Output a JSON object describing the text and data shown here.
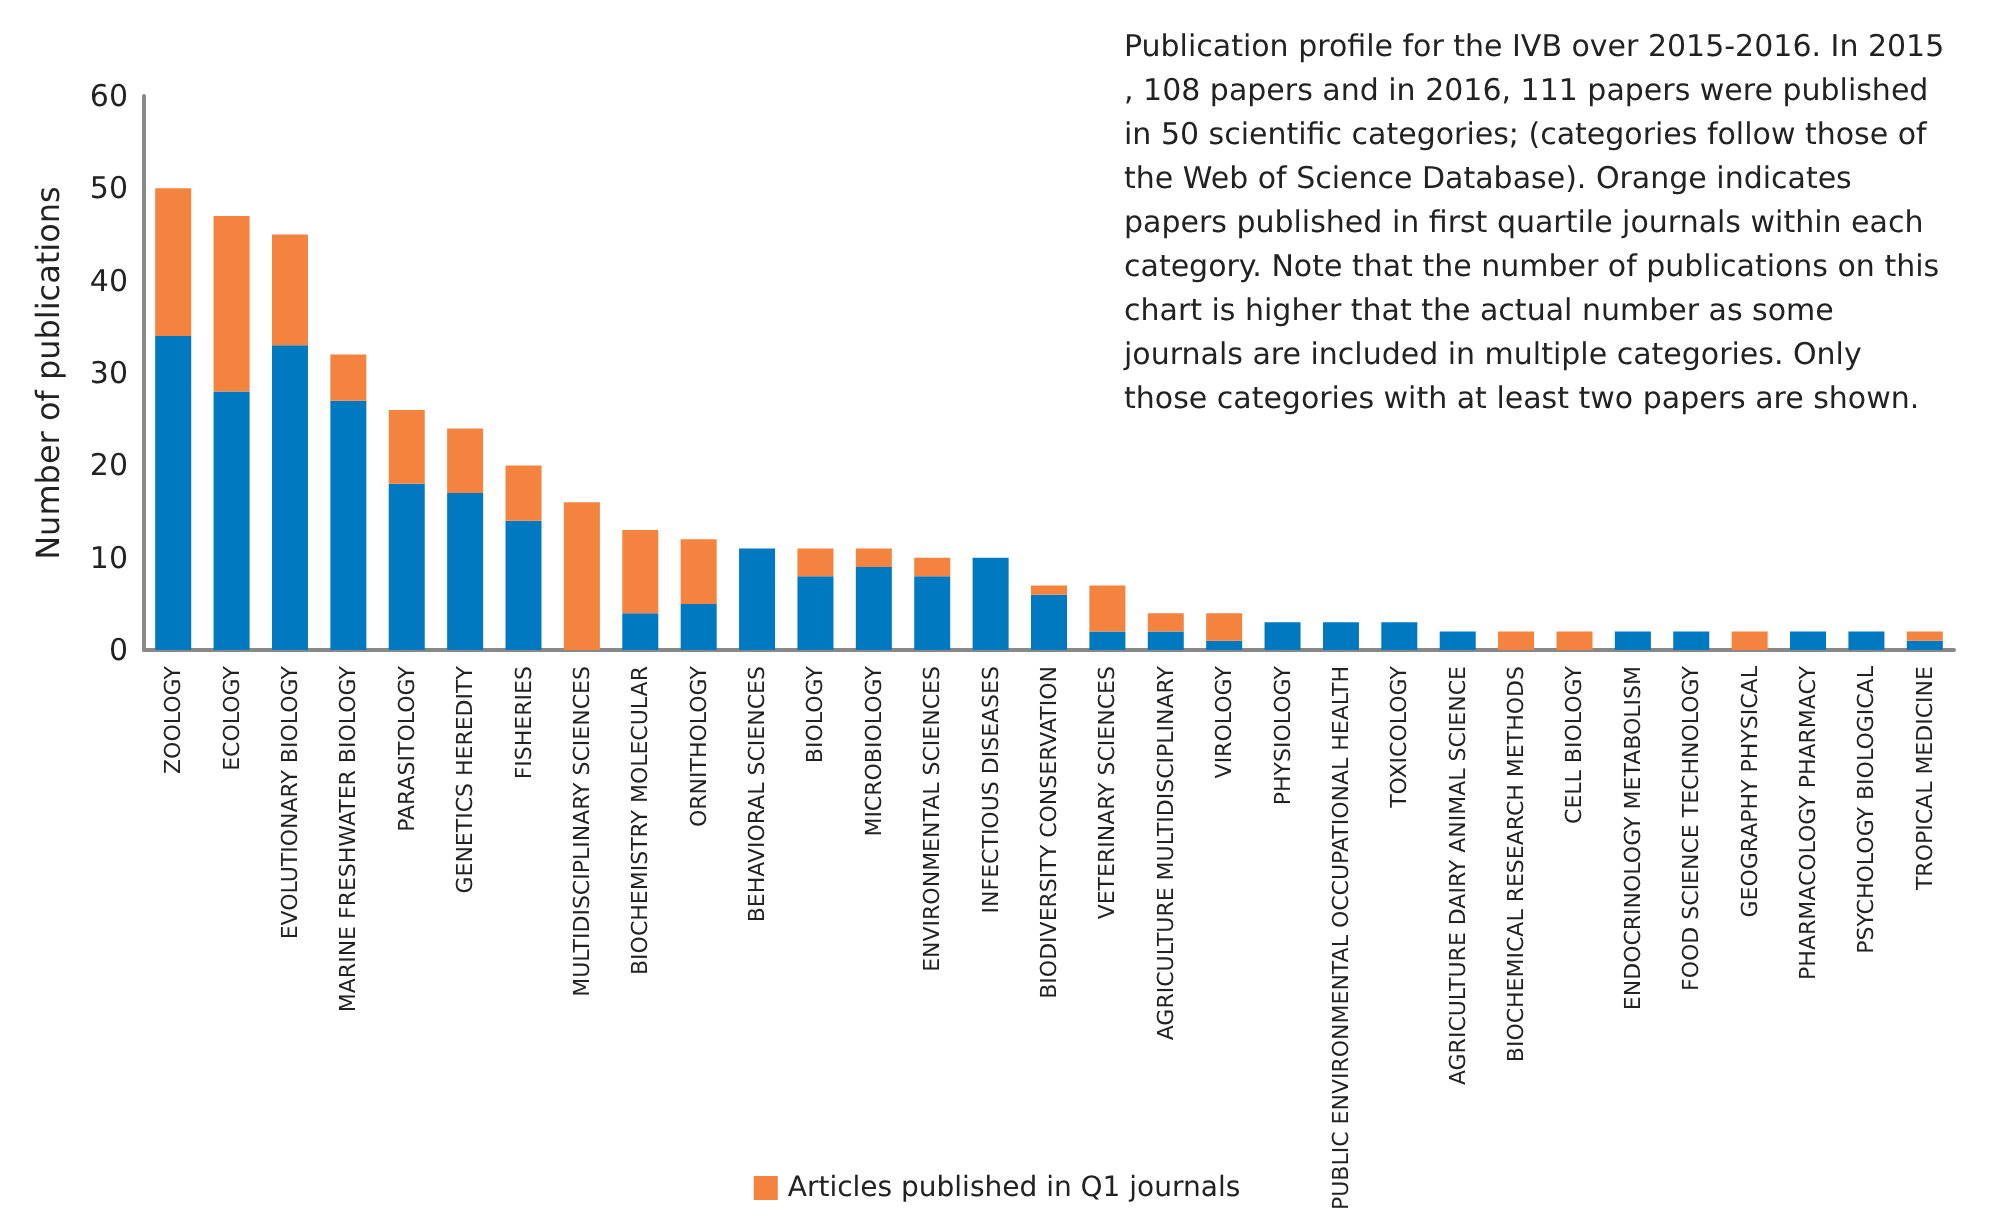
{
  "chart_data": {
    "type": "bar",
    "stacked": true,
    "ylabel": "Number of publications",
    "annotations": [
      "Publication profile for the IVB over 2015-2016. In 2015, 108 papers and in 2016, 111 papers were published in 50 scientific categories; (categories follow those of the Web of Science Database). Orange indicates papers published in first quartile journals within each category. Note that the number of publications on this chart is higher that the actual number as some journals are included in multiple categories. Only those categories with at least two papers are shown."
    ],
    "categories": [
      "ZOOLOGY",
      "ECOLOGY",
      "EVOLUTIONARY BIOLOGY",
      "MARINE FRESHWATER BIOLOGY",
      "PARASITOLOGY",
      "GENETICS HEREDITY",
      "FISHERIES",
      "MULTIDISCIPLINARY SCIENCES",
      "BIOCHEMISTRY MOLECULAR",
      "ORNITHOLOGY",
      "BEHAVIORAL SCIENCES",
      "BIOLOGY",
      "MICROBIOLOGY",
      "ENVIRONMENTAL SCIENCES",
      "INFECTIOUS DISEASES",
      "BIODIVERSITY CONSERVATION",
      "VETERINARY SCIENCES",
      "AGRICULTURE MULTIDISCIPLINARY",
      "VIROLOGY",
      "PHYSIOLOGY",
      "PUBLIC ENVIRONMENTAL OCCUPATIONAL HEALTH",
      "TOXICOLOGY",
      "AGRICULTURE DAIRY ANIMAL SCIENCE",
      "BIOCHEMICAL RESEARCH METHODS",
      "CELL BIOLOGY",
      "ENDOCRINOLOGY METABOLISM",
      "FOOD SCIENCE TECHNOLOGY",
      "GEOGRAPHY PHYSICAL",
      "PHARMACOLOGY PHARMACY",
      "PSYCHOLOGY BIOLOGICAL",
      "TROPICAL MEDICINE"
    ],
    "series": [
      {
        "color": "#0079c1",
        "values": [
          34,
          28,
          33,
          27,
          18,
          17,
          14,
          0,
          4,
          5,
          11,
          8,
          9,
          8,
          10,
          6,
          2,
          2,
          1,
          3,
          3,
          3,
          2,
          0,
          0,
          2,
          2,
          0,
          2,
          2,
          1
        ]
      },
      {
        "name": "Articles published in Q1 journals",
        "color": "#f4833f",
        "values": [
          16,
          19,
          12,
          5,
          8,
          7,
          6,
          16,
          9,
          7,
          0,
          3,
          2,
          2,
          0,
          1,
          5,
          2,
          3,
          0,
          0,
          0,
          0,
          2,
          2,
          0,
          0,
          2,
          0,
          0,
          1
        ]
      }
    ],
    "ylim": [
      0,
      60
    ],
    "yticks": [
      0,
      10,
      20,
      30,
      40,
      50,
      60
    ],
    "grid": false,
    "legend": "bottom"
  }
}
